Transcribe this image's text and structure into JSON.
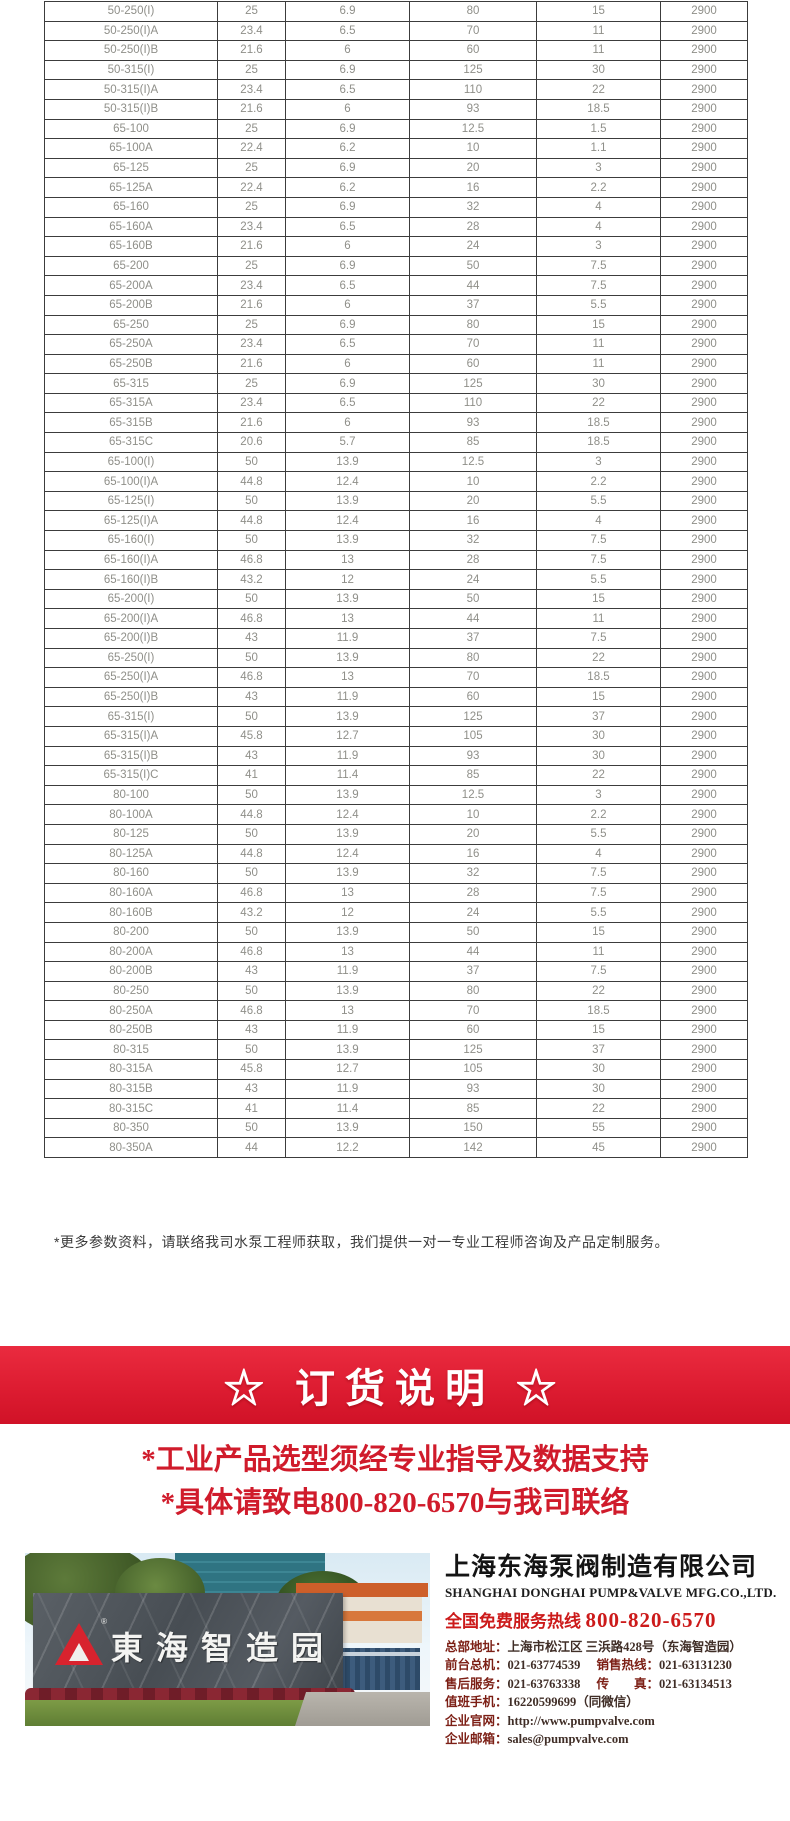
{
  "table": {
    "rows": [
      [
        "50-250(I)",
        "25",
        "6.9",
        "80",
        "15",
        "2900"
      ],
      [
        "50-250(I)A",
        "23.4",
        "6.5",
        "70",
        "11",
        "2900"
      ],
      [
        "50-250(I)B",
        "21.6",
        "6",
        "60",
        "11",
        "2900"
      ],
      [
        "50-315(I)",
        "25",
        "6.9",
        "125",
        "30",
        "2900"
      ],
      [
        "50-315(I)A",
        "23.4",
        "6.5",
        "110",
        "22",
        "2900"
      ],
      [
        "50-315(I)B",
        "21.6",
        "6",
        "93",
        "18.5",
        "2900"
      ],
      [
        "65-100",
        "25",
        "6.9",
        "12.5",
        "1.5",
        "2900"
      ],
      [
        "65-100A",
        "22.4",
        "6.2",
        "10",
        "1.1",
        "2900"
      ],
      [
        "65-125",
        "25",
        "6.9",
        "20",
        "3",
        "2900"
      ],
      [
        "65-125A",
        "22.4",
        "6.2",
        "16",
        "2.2",
        "2900"
      ],
      [
        "65-160",
        "25",
        "6.9",
        "32",
        "4",
        "2900"
      ],
      [
        "65-160A",
        "23.4",
        "6.5",
        "28",
        "4",
        "2900"
      ],
      [
        "65-160B",
        "21.6",
        "6",
        "24",
        "3",
        "2900"
      ],
      [
        "65-200",
        "25",
        "6.9",
        "50",
        "7.5",
        "2900"
      ],
      [
        "65-200A",
        "23.4",
        "6.5",
        "44",
        "7.5",
        "2900"
      ],
      [
        "65-200B",
        "21.6",
        "6",
        "37",
        "5.5",
        "2900"
      ],
      [
        "65-250",
        "25",
        "6.9",
        "80",
        "15",
        "2900"
      ],
      [
        "65-250A",
        "23.4",
        "6.5",
        "70",
        "11",
        "2900"
      ],
      [
        "65-250B",
        "21.6",
        "6",
        "60",
        "11",
        "2900"
      ],
      [
        "65-315",
        "25",
        "6.9",
        "125",
        "30",
        "2900"
      ],
      [
        "65-315A",
        "23.4",
        "6.5",
        "110",
        "22",
        "2900"
      ],
      [
        "65-315B",
        "21.6",
        "6",
        "93",
        "18.5",
        "2900"
      ],
      [
        "65-315C",
        "20.6",
        "5.7",
        "85",
        "18.5",
        "2900"
      ],
      [
        "65-100(I)",
        "50",
        "13.9",
        "12.5",
        "3",
        "2900"
      ],
      [
        "65-100(I)A",
        "44.8",
        "12.4",
        "10",
        "2.2",
        "2900"
      ],
      [
        "65-125(I)",
        "50",
        "13.9",
        "20",
        "5.5",
        "2900"
      ],
      [
        "65-125(I)A",
        "44.8",
        "12.4",
        "16",
        "4",
        "2900"
      ],
      [
        "65-160(I)",
        "50",
        "13.9",
        "32",
        "7.5",
        "2900"
      ],
      [
        "65-160(I)A",
        "46.8",
        "13",
        "28",
        "7.5",
        "2900"
      ],
      [
        "65-160(I)B",
        "43.2",
        "12",
        "24",
        "5.5",
        "2900"
      ],
      [
        "65-200(I)",
        "50",
        "13.9",
        "50",
        "15",
        "2900"
      ],
      [
        "65-200(I)A",
        "46.8",
        "13",
        "44",
        "11",
        "2900"
      ],
      [
        "65-200(I)B",
        "43",
        "11.9",
        "37",
        "7.5",
        "2900"
      ],
      [
        "65-250(I)",
        "50",
        "13.9",
        "80",
        "22",
        "2900"
      ],
      [
        "65-250(I)A",
        "46.8",
        "13",
        "70",
        "18.5",
        "2900"
      ],
      [
        "65-250(I)B",
        "43",
        "11.9",
        "60",
        "15",
        "2900"
      ],
      [
        "65-315(I)",
        "50",
        "13.9",
        "125",
        "37",
        "2900"
      ],
      [
        "65-315(I)A",
        "45.8",
        "12.7",
        "105",
        "30",
        "2900"
      ],
      [
        "65-315(I)B",
        "43",
        "11.9",
        "93",
        "30",
        "2900"
      ],
      [
        "65-315(I)C",
        "41",
        "11.4",
        "85",
        "22",
        "2900"
      ],
      [
        "80-100",
        "50",
        "13.9",
        "12.5",
        "3",
        "2900"
      ],
      [
        "80-100A",
        "44.8",
        "12.4",
        "10",
        "2.2",
        "2900"
      ],
      [
        "80-125",
        "50",
        "13.9",
        "20",
        "5.5",
        "2900"
      ],
      [
        "80-125A",
        "44.8",
        "12.4",
        "16",
        "4",
        "2900"
      ],
      [
        "80-160",
        "50",
        "13.9",
        "32",
        "7.5",
        "2900"
      ],
      [
        "80-160A",
        "46.8",
        "13",
        "28",
        "7.5",
        "2900"
      ],
      [
        "80-160B",
        "43.2",
        "12",
        "24",
        "5.5",
        "2900"
      ],
      [
        "80-200",
        "50",
        "13.9",
        "50",
        "15",
        "2900"
      ],
      [
        "80-200A",
        "46.8",
        "13",
        "44",
        "11",
        "2900"
      ],
      [
        "80-200B",
        "43",
        "11.9",
        "37",
        "7.5",
        "2900"
      ],
      [
        "80-250",
        "50",
        "13.9",
        "80",
        "22",
        "2900"
      ],
      [
        "80-250A",
        "46.8",
        "13",
        "70",
        "18.5",
        "2900"
      ],
      [
        "80-250B",
        "43",
        "11.9",
        "60",
        "15",
        "2900"
      ],
      [
        "80-315",
        "50",
        "13.9",
        "125",
        "37",
        "2900"
      ],
      [
        "80-315A",
        "45.8",
        "12.7",
        "105",
        "30",
        "2900"
      ],
      [
        "80-315B",
        "43",
        "11.9",
        "93",
        "30",
        "2900"
      ],
      [
        "80-315C",
        "41",
        "11.4",
        "85",
        "22",
        "2900"
      ],
      [
        "80-350",
        "50",
        "13.9",
        "150",
        "55",
        "2900"
      ],
      [
        "80-350A",
        "44",
        "12.2",
        "142",
        "45",
        "2900"
      ]
    ]
  },
  "note": {
    "text": "*更多参数资料，请联络我司水泵工程师获取，我们提供一对一专业工程师咨询及产品定制服务。"
  },
  "banner": {
    "title": "☆ 订货说明 ☆",
    "background_color": "#dd1c31"
  },
  "notices": [
    "*工业产品选型须经专业指导及数据支持",
    "*具体请致电800-820-6570与我司联络"
  ],
  "notice_color": "#d01b2b",
  "company": {
    "name_cn": "上海东海泵阀制造有限公司",
    "name_en": "SHANGHAI DONGHAI PUMP&VALVE MFG.CO.,LTD.",
    "hotline_label": "全国免费服务热线",
    "hotline_number": "800-820-6570",
    "hotline_color": "#cc1a1a",
    "contacts": [
      [
        {
          "label": "总部地址：",
          "value": "上海市松江区 三浜路428号（东海智造园）"
        }
      ],
      [
        {
          "label": "前台总机：",
          "value": "021-63774539"
        },
        {
          "label": "销售热线：",
          "value": "021-63131230"
        }
      ],
      [
        {
          "label": "售后服务：",
          "value": "021-63763338"
        },
        {
          "label": "传　　真：",
          "value": "021-63134513"
        }
      ],
      [
        {
          "label": "值班手机：",
          "value": "16220599699（同微信）"
        }
      ],
      [
        {
          "label": "企业官网：",
          "value": "http://www.pumpvalve.com",
          "link": true
        }
      ],
      [
        {
          "label": "企业邮箱：",
          "value": "sales@pumpvalve.com",
          "link": true
        }
      ]
    ]
  },
  "photo": {
    "sign_text": "東海智造园",
    "logo": "donghai-triangle-logo"
  }
}
